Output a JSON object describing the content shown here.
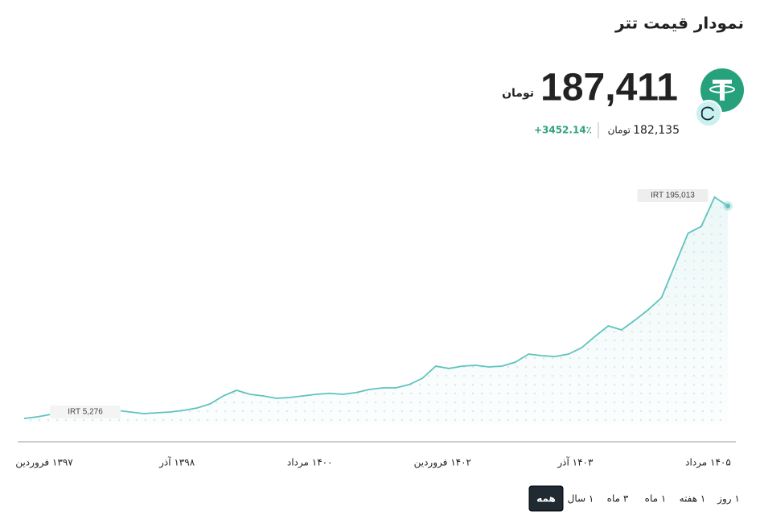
{
  "header": {
    "title": "نمودار قیمت تتر",
    "price": "187,411",
    "price_unit": "تومان",
    "secondary_price": "182,135",
    "secondary_unit": "تومان",
    "change": "+3452.14٪"
  },
  "chart_data": {
    "type": "line",
    "categories": [
      "",
      "",
      "۱۳۹۷ فروردین",
      "",
      "",
      "",
      "",
      "",
      "",
      "",
      "",
      "",
      "۱۳۹۸ آذر",
      "",
      "",
      "",
      "",
      "",
      "",
      "",
      "",
      "",
      "۱۴۰۰ مرداد",
      "",
      "",
      "",
      "",
      "",
      "",
      "",
      "",
      "",
      "۱۴۰۲ فروردین",
      "",
      "",
      "",
      "",
      "",
      "",
      "",
      "",
      "",
      "۱۴۰۳ آذر",
      "",
      "",
      "",
      "",
      "",
      "",
      "",
      "",
      "",
      "۱۴۰۵ مرداد",
      ""
    ],
    "series": [
      {
        "color": "#5fc3bf",
        "values": [
          5276,
          6650,
          8700,
          13500,
          10800,
          10100,
          12200,
          12200,
          10800,
          9400,
          10100,
          10800,
          12200,
          14200,
          17700,
          24600,
          29400,
          26000,
          24600,
          22500,
          23200,
          24600,
          26000,
          26700,
          26000,
          27400,
          30100,
          31500,
          31500,
          34300,
          39800,
          50100,
          48100,
          50100,
          50800,
          49400,
          50100,
          53600,
          60500,
          59100,
          58400,
          60500,
          66000,
          75700,
          84600,
          81200,
          89500,
          98400,
          108800,
          136400,
          164000,
          170000,
          195013,
          187411
        ],
        "value_labels": [
          "IRT 5,276",
          null,
          null,
          null,
          null,
          null,
          null,
          null,
          null,
          null,
          null,
          null,
          null,
          null,
          null,
          null,
          null,
          null,
          null,
          null,
          null,
          null,
          null,
          null,
          null,
          null,
          null,
          null,
          null,
          null,
          null,
          null,
          null,
          null,
          null,
          null,
          null,
          null,
          null,
          null,
          null,
          null,
          null,
          null,
          null,
          null,
          null,
          null,
          null,
          null,
          null,
          null,
          "IRT 195,013",
          null
        ]
      }
    ]
  },
  "range_buttons": [
    "همه",
    "۱ سال",
    "۳ ماه",
    "۱ ماه",
    "۱ هفته",
    "۱ روز"
  ]
}
